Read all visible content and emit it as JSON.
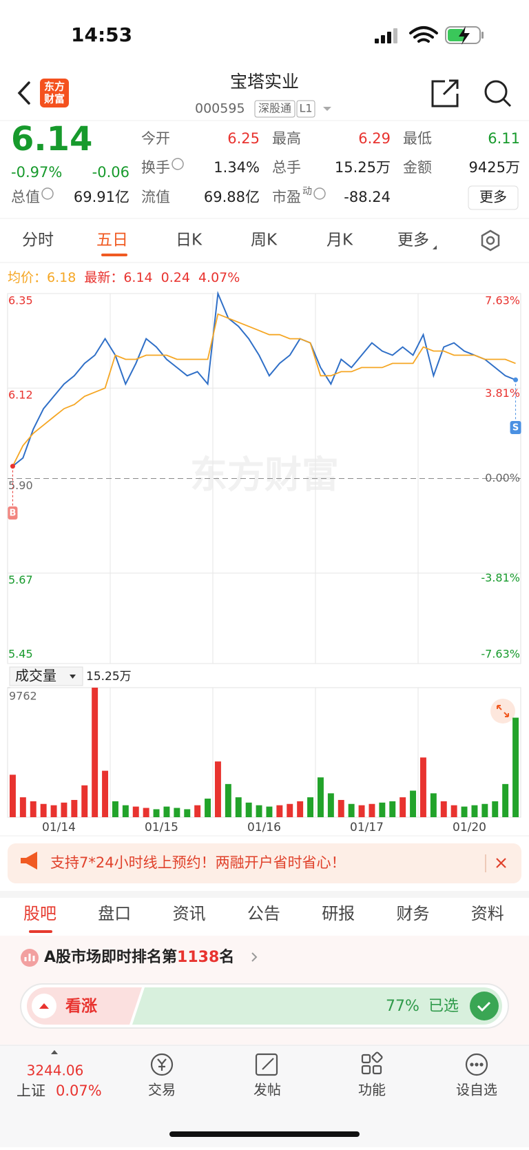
{
  "status": {
    "time": "14:53"
  },
  "header": {
    "logo": [
      "东方",
      "财富"
    ],
    "title": "宝塔实业",
    "code": "000595",
    "tag1": "深股通",
    "tag2": "L1"
  },
  "quote": {
    "price": "6.14",
    "change_pct": "-0.97%",
    "change": "-0.06",
    "more": "更多",
    "fields": [
      {
        "label": "今开",
        "value": "6.25",
        "color": "#e8332f"
      },
      {
        "label": "最高",
        "value": "6.29",
        "color": "#e8332f"
      },
      {
        "label": "最低",
        "value": "6.11",
        "color": "#179a2c"
      },
      {
        "label": "换手",
        "value": "1.34%",
        "info": true
      },
      {
        "label": "总手",
        "value": "15.25万"
      },
      {
        "label": "金额",
        "value": "9425万"
      },
      {
        "label": "总值",
        "value": "69.91亿",
        "info": true
      },
      {
        "label": "流值",
        "value": "69.88亿"
      },
      {
        "label": "市盈",
        "sup": "动",
        "value": "-88.24",
        "info": true
      }
    ]
  },
  "tabs": [
    "分时",
    "五日",
    "日K",
    "周K",
    "月K",
    "更多"
  ],
  "legend": {
    "avg_label": "均价：",
    "avg": "6.18",
    "last_label": "最新：",
    "last": "6.14",
    "chg": "0.24",
    "pct": "4.07%"
  },
  "chart_data": [
    {
      "type": "line",
      "watermark": "东方财富",
      "markers": [
        "B",
        "S"
      ],
      "ylim": [
        5.45,
        6.35
      ],
      "yticks": [
        6.35,
        6.12,
        {
          "value": 5.9,
          "label": "5.90"
        },
        5.67,
        5.45
      ],
      "y2lim": [
        -7.63,
        7.63
      ],
      "y2ticks": [
        {
          "value": 7.63,
          "label": "7.63%"
        },
        {
          "value": 3.81,
          "label": "3.81%"
        },
        {
          "value": 0,
          "label": "0.00%"
        },
        {
          "value": -3.81,
          "label": "-3.81%"
        },
        {
          "value": -7.63,
          "label": "-7.63%"
        }
      ],
      "series": [
        {
          "color": "#2f6fc7",
          "values": [
            5.93,
            5.95,
            6.02,
            6.07,
            6.1,
            6.13,
            6.15,
            6.18,
            6.2,
            6.24,
            6.2,
            6.13,
            6.18,
            6.24,
            6.22,
            6.19,
            6.17,
            6.15,
            6.16,
            6.13,
            6.35,
            6.29,
            6.27,
            6.24,
            6.2,
            6.15,
            6.18,
            6.2,
            6.24,
            6.23,
            6.17,
            6.13,
            6.19,
            6.17,
            6.2,
            6.23,
            6.21,
            6.2,
            6.22,
            6.2,
            6.25,
            6.15,
            6.22,
            6.23,
            6.21,
            6.2,
            6.19,
            6.17,
            6.15,
            6.14
          ]
        },
        {
          "color": "#f5a623",
          "values": [
            5.93,
            5.98,
            6.01,
            6.03,
            6.05,
            6.07,
            6.08,
            6.1,
            6.11,
            6.12,
            6.2,
            6.19,
            6.19,
            6.2,
            6.2,
            6.2,
            6.19,
            6.19,
            6.19,
            6.19,
            6.3,
            6.29,
            6.28,
            6.27,
            6.26,
            6.25,
            6.25,
            6.24,
            6.24,
            6.23,
            6.15,
            6.15,
            6.16,
            6.16,
            6.17,
            6.17,
            6.17,
            6.18,
            6.18,
            6.18,
            6.22,
            6.21,
            6.21,
            6.2,
            6.2,
            6.2,
            6.19,
            6.19,
            6.19,
            6.18
          ]
        }
      ]
    },
    {
      "type": "bar",
      "title": "成交量",
      "total": "15.25万",
      "color_up": "#e8332f",
      "color_down": "#22a32a",
      "ylim": [
        0,
        9762
      ],
      "yticks": [
        9762
      ],
      "day_labels": [
        "01/14",
        "01/15",
        "01/16",
        "01/17",
        "01/20"
      ],
      "values": [
        3200,
        1500,
        1200,
        1000,
        900,
        1100,
        1300,
        2400,
        9762,
        3500,
        1200,
        900,
        800,
        700,
        600,
        800,
        700,
        600,
        900,
        1400,
        4200,
        2500,
        1500,
        1100,
        900,
        800,
        900,
        1000,
        1200,
        1500,
        3000,
        1800,
        1300,
        1000,
        900,
        1000,
        1100,
        1200,
        1500,
        2000,
        4500,
        1800,
        1200,
        900,
        800,
        900,
        1000,
        1200,
        2500,
        7500
      ]
    }
  ],
  "banner": {
    "text": "支持7*24小时线上预约！两融开户省时省心！"
  },
  "subtabs": [
    "股吧",
    "盘口",
    "资讯",
    "公告",
    "研报",
    "财务",
    "资料"
  ],
  "ranking": {
    "prefix": "A股市场即时排名第",
    "rank": "1138",
    "suffix": "名"
  },
  "sentiment": {
    "bull": "看涨",
    "pct": "77%",
    "chosen": "已选"
  },
  "nav": {
    "index_value": "3244.06",
    "index_name": "上证",
    "index_pct": "0.07%",
    "items": [
      "交易",
      "发帖",
      "功能",
      "设自选"
    ]
  }
}
